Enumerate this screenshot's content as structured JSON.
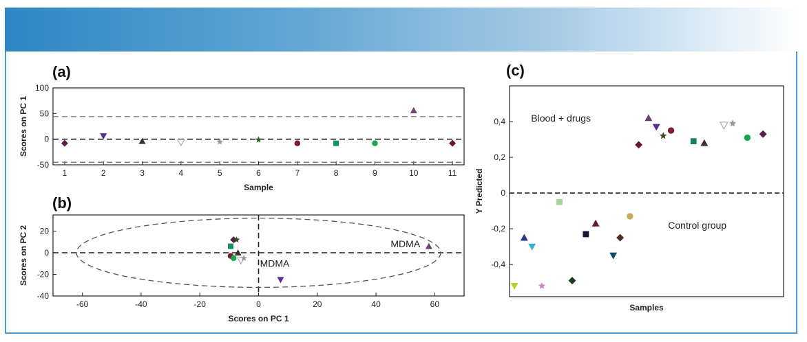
{
  "colors": {
    "banner_start": "#2f86c3",
    "banner_end": "#ffffff",
    "frame": "#4d9ad2"
  },
  "chart_data": [
    {
      "type": "scatter",
      "panel_label": "(a)",
      "xlabel": "Sample",
      "ylabel": "Scores on PC 1",
      "xlim": [
        0.7,
        11.3
      ],
      "ylim": [
        -50,
        100
      ],
      "xticks": [
        "1",
        "2",
        "3",
        "4",
        "5",
        "6",
        "7",
        "8",
        "9",
        "10",
        "11"
      ],
      "yticks": [
        "100",
        "50",
        "0",
        "-50"
      ],
      "hlines": [
        {
          "y": 44,
          "style": "dashed",
          "color": "#666666"
        },
        {
          "y": 0,
          "style": "dashed-bold",
          "color": "#222222"
        },
        {
          "y": -45,
          "style": "dashed",
          "color": "#666666"
        }
      ],
      "points": [
        {
          "x": 1,
          "y": -8,
          "marker": "diamond",
          "color": "#5a1f4a"
        },
        {
          "x": 2,
          "y": 6,
          "marker": "triangle-down",
          "color": "#5b2d8e"
        },
        {
          "x": 3,
          "y": -4,
          "marker": "triangle-up",
          "color": "#3a302c"
        },
        {
          "x": 4,
          "y": -6,
          "marker": "triangle-down-open",
          "color": "#999999"
        },
        {
          "x": 5,
          "y": -5,
          "marker": "star",
          "color": "#9a9a8a"
        },
        {
          "x": 6,
          "y": -1,
          "marker": "star",
          "color": "#2f5a24"
        },
        {
          "x": 7,
          "y": -8,
          "marker": "circle",
          "color": "#7a1f2b"
        },
        {
          "x": 8,
          "y": -8,
          "marker": "square",
          "color": "#13916b"
        },
        {
          "x": 9,
          "y": -8,
          "marker": "circle",
          "color": "#1aa650"
        },
        {
          "x": 10,
          "y": 56,
          "marker": "triangle-up",
          "color": "#6b3f6f"
        },
        {
          "x": 11,
          "y": -8,
          "marker": "diamond",
          "color": "#6a1a2e"
        }
      ]
    },
    {
      "type": "scatter",
      "panel_label": "(b)",
      "xlabel": "Scores on PC 1",
      "ylabel": "Scores on PC 2",
      "xlim": [
        -70,
        70
      ],
      "ylim": [
        -40,
        35
      ],
      "xticks": [
        "-60",
        "-40",
        "-20",
        "0",
        "20",
        "40",
        "60"
      ],
      "yticks": [
        "20",
        "0",
        "-20",
        "-40"
      ],
      "ellipse": {
        "cx": 0,
        "cy": 0,
        "rx": 62,
        "ry": 32
      },
      "annotations": [
        {
          "text": "MDMA",
          "x": 45,
          "y": 5
        },
        {
          "text": "MDMA",
          "x": 0.5,
          "y": -13
        }
      ],
      "points": [
        {
          "x": -8.5,
          "y": 12,
          "marker": "diamond",
          "color": "#5a1f4a"
        },
        {
          "x": -7.5,
          "y": 12,
          "marker": "star",
          "color": "#3a4a24"
        },
        {
          "x": -9.5,
          "y": 6,
          "marker": "square",
          "color": "#13916b"
        },
        {
          "x": -7,
          "y": 0,
          "marker": "triangle-up",
          "color": "#3a302c"
        },
        {
          "x": -9.5,
          "y": -3,
          "marker": "circle",
          "color": "#7a1f2b"
        },
        {
          "x": -8.5,
          "y": -5,
          "marker": "circle",
          "color": "#1aa650"
        },
        {
          "x": -6,
          "y": -7,
          "marker": "triangle-down-open",
          "color": "#999999"
        },
        {
          "x": -5,
          "y": -5,
          "marker": "star",
          "color": "#9a9a8a"
        },
        {
          "x": 58,
          "y": 6,
          "marker": "triangle-up",
          "color": "#6b3f6f"
        },
        {
          "x": 7.5,
          "y": -25,
          "marker": "triangle-down",
          "color": "#5b2d8e"
        }
      ]
    },
    {
      "type": "scatter",
      "panel_label": "(c)",
      "xlabel": "Samples",
      "ylabel": "Y Predicted",
      "xlim": [
        0,
        14
      ],
      "ylim": [
        -0.58,
        0.6
      ],
      "yticks": [
        "0,4",
        "0,2",
        "0",
        "-0,2",
        "-0,4"
      ],
      "hlines": [
        {
          "y": 0,
          "style": "dashed-bold",
          "color": "#222222"
        }
      ],
      "annotations": [
        {
          "text": "Blood + drugs",
          "x": 1.1,
          "y": 0.4
        },
        {
          "text": "Control group",
          "x": 8.1,
          "y": -0.2
        }
      ],
      "points": [
        {
          "x": 6.6,
          "y": 0.27,
          "marker": "diamond",
          "color": "#6a1a2e"
        },
        {
          "x": 7.1,
          "y": 0.42,
          "marker": "triangle-up",
          "color": "#6b3f6f"
        },
        {
          "x": 7.5,
          "y": 0.37,
          "marker": "triangle-down",
          "color": "#5b2d8e"
        },
        {
          "x": 7.85,
          "y": 0.32,
          "marker": "star",
          "color": "#3a4a24"
        },
        {
          "x": 8.25,
          "y": 0.35,
          "marker": "circle",
          "color": "#7a1f2b"
        },
        {
          "x": 9.4,
          "y": 0.29,
          "marker": "square",
          "color": "#17806a"
        },
        {
          "x": 9.95,
          "y": 0.28,
          "marker": "triangle-up",
          "color": "#3a302c"
        },
        {
          "x": 10.95,
          "y": 0.38,
          "marker": "triangle-down-open",
          "color": "#999999"
        },
        {
          "x": 11.4,
          "y": 0.39,
          "marker": "star",
          "color": "#9a9a8a"
        },
        {
          "x": 12.15,
          "y": 0.31,
          "marker": "circle",
          "color": "#1aa650"
        },
        {
          "x": 12.95,
          "y": 0.33,
          "marker": "diamond",
          "color": "#5a1f4a"
        },
        {
          "x": 0.25,
          "y": -0.52,
          "marker": "triangle-down",
          "color": "#b5d334"
        },
        {
          "x": 0.75,
          "y": -0.25,
          "marker": "triangle-up",
          "color": "#233a8a"
        },
        {
          "x": 1.15,
          "y": -0.3,
          "marker": "triangle-down",
          "color": "#2fb3d0"
        },
        {
          "x": 1.65,
          "y": -0.52,
          "marker": "star",
          "color": "#c48ac8"
        },
        {
          "x": 2.55,
          "y": -0.05,
          "marker": "square",
          "color": "#a6d49a"
        },
        {
          "x": 3.2,
          "y": -0.49,
          "marker": "diamond",
          "color": "#1e3a20"
        },
        {
          "x": 3.9,
          "y": -0.23,
          "marker": "square",
          "color": "#101a30"
        },
        {
          "x": 4.4,
          "y": -0.17,
          "marker": "triangle-up",
          "color": "#6a1a2e"
        },
        {
          "x": 5.3,
          "y": -0.35,
          "marker": "triangle-down",
          "color": "#124a6a"
        },
        {
          "x": 5.65,
          "y": -0.25,
          "marker": "diamond",
          "color": "#4a2e1e"
        },
        {
          "x": 6.15,
          "y": -0.13,
          "marker": "circle",
          "color": "#c9a85a"
        }
      ]
    }
  ]
}
